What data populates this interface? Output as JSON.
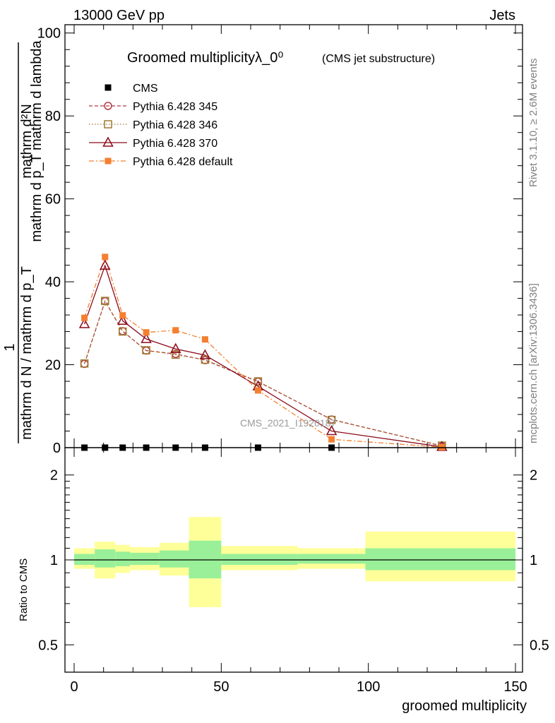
{
  "header": {
    "left": "13000 GeV pp",
    "right": "Jets"
  },
  "side_labels": {
    "rivet": "Rivet 3.1.10, ≥ 2.6M events",
    "site": "mcplots.cern.ch [arXiv:1306.3436]"
  },
  "watermark": "CMS_2021_I1920187",
  "title": {
    "main": "Groomed multiplicityλ_0⁰",
    "sub": "(CMS jet substructure)"
  },
  "ylabel_main": {
    "num": "1",
    "den": "mathrm d N / mathrm d p_T",
    "num2": "mathrm d²N",
    "den2": "mathrm d p_T mathrm d lambda"
  },
  "ylabel_ratio": "Ratio to CMS",
  "xlabel": "groomed multiplicity",
  "colors": {
    "cms": "#000000",
    "p345": "#b23a48",
    "p346": "#a07a30",
    "p370": "#8b0a1a",
    "pdef": "#f47f30",
    "band_inner": "#99f099",
    "band_outer": "#ffff99"
  },
  "chart_data": [
    {
      "type": "line",
      "title": "Groomed multiplicityλ_0⁰ (CMS jet substructure)",
      "xlabel": "groomed multiplicity",
      "ylabel": "1 / N dN/dp_T · d²N/dp_T dλ",
      "xlim": [
        -3,
        151
      ],
      "ylim": [
        0,
        102
      ],
      "yticks": [
        0,
        20,
        40,
        60,
        80,
        100
      ],
      "xticks": [
        0,
        50,
        100,
        150
      ],
      "x": [
        3.5,
        10.5,
        16.5,
        24.5,
        34.5,
        44.5,
        62.5,
        87.5,
        125
      ],
      "series": [
        {
          "name": "CMS",
          "marker": "square-filled",
          "values": [
            0,
            0,
            0,
            0,
            0,
            0,
            0,
            0,
            null
          ]
        },
        {
          "name": "Pythia 6.428 345",
          "marker": "circle-open",
          "values": [
            20.2,
            35.3,
            28.1,
            23.4,
            22.6,
            21.1,
            15.9,
            6.8,
            0.4
          ]
        },
        {
          "name": "Pythia 6.428 346",
          "marker": "square-open",
          "values": [
            20.3,
            35.4,
            28.0,
            23.5,
            22.4,
            21.2,
            16.0,
            6.7,
            0.5
          ]
        },
        {
          "name": "Pythia 6.428 370",
          "marker": "triangle-open",
          "values": [
            29.8,
            43.9,
            30.6,
            26.2,
            23.8,
            22.3,
            14.8,
            4.0,
            0.2
          ]
        },
        {
          "name": "Pythia 6.428 default",
          "marker": "square-filled",
          "values": [
            31.3,
            46.0,
            31.9,
            27.8,
            28.3,
            26.1,
            13.8,
            2.0,
            0.1
          ]
        }
      ],
      "legend": [
        "CMS",
        "Pythia 6.428 345",
        "Pythia 6.428 346",
        "Pythia 6.428 370",
        "Pythia 6.428 default"
      ],
      "legend_position": "top-left"
    },
    {
      "type": "area",
      "title": "Ratio to CMS",
      "ylabel": "Ratio to CMS",
      "xlabel": "groomed multiplicity",
      "yscale": "log",
      "ylim": [
        0.4,
        2.5
      ],
      "yticks": [
        0.5,
        1,
        2
      ],
      "xticks": [
        0,
        50,
        100,
        150
      ],
      "reference": 1,
      "bins": [
        {
          "x": [
            0,
            7
          ],
          "inner": [
            0.96,
            1.05
          ],
          "outer": [
            0.93,
            1.1
          ]
        },
        {
          "x": [
            7,
            14
          ],
          "inner": [
            0.94,
            1.09
          ],
          "outer": [
            0.86,
            1.16
          ]
        },
        {
          "x": [
            14,
            19
          ],
          "inner": [
            0.95,
            1.07
          ],
          "outer": [
            0.9,
            1.13
          ]
        },
        {
          "x": [
            19,
            29
          ],
          "inner": [
            0.96,
            1.06
          ],
          "outer": [
            0.92,
            1.11
          ]
        },
        {
          "x": [
            29,
            39
          ],
          "inner": [
            0.94,
            1.08
          ],
          "outer": [
            0.88,
            1.15
          ]
        },
        {
          "x": [
            39,
            50
          ],
          "inner": [
            0.86,
            1.17
          ],
          "outer": [
            0.68,
            1.42
          ]
        },
        {
          "x": [
            50,
            76
          ],
          "inner": [
            0.96,
            1.05
          ],
          "outer": [
            0.92,
            1.12
          ]
        },
        {
          "x": [
            76,
            99
          ],
          "inner": [
            0.97,
            1.05
          ],
          "outer": [
            0.93,
            1.1
          ]
        },
        {
          "x": [
            99,
            150
          ],
          "inner": [
            0.92,
            1.1
          ],
          "outer": [
            0.84,
            1.26
          ]
        }
      ]
    }
  ]
}
